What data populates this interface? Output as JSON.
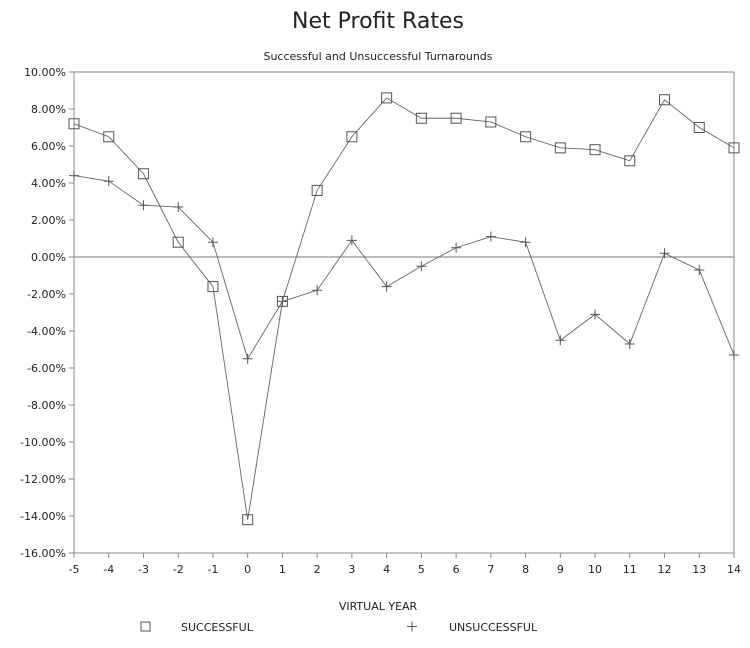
{
  "chart_data": {
    "type": "line",
    "title": "Net Profit Rates",
    "subtitle": "Successful and Unsuccessful Turnarounds",
    "xlabel": "VIRTUAL YEAR",
    "ylabel": "",
    "x": [
      -5,
      -4,
      -3,
      -2,
      -1,
      0,
      1,
      2,
      3,
      4,
      5,
      6,
      7,
      8,
      9,
      10,
      11,
      12,
      13,
      14
    ],
    "xlim": [
      -5,
      14
    ],
    "ylim": [
      -16,
      10
    ],
    "yticks": [
      10,
      8,
      6,
      4,
      2,
      0,
      -2,
      -4,
      -6,
      -8,
      -10,
      -12,
      -14,
      -16
    ],
    "ytick_labels": [
      "10.00%",
      "8.00%",
      "6.00%",
      "4.00%",
      "2.00%",
      "0.00%",
      "-2.00%",
      "-4.00%",
      "-6.00%",
      "-8.00%",
      "-10.00%",
      "-12.00%",
      "-14.00%",
      "-16.00%"
    ],
    "xtick_labels": [
      "-5",
      "-4",
      "-3",
      "-2",
      "-1",
      "0",
      "1",
      "2",
      "3",
      "4",
      "5",
      "6",
      "7",
      "8",
      "9",
      "10",
      "11",
      "12",
      "13",
      "14"
    ],
    "grid": false,
    "zero_line": true,
    "legend_position": "bottom",
    "series": [
      {
        "name": "SUCCESSFUL",
        "marker": "square",
        "color": "#555555",
        "values": [
          7.2,
          6.5,
          4.5,
          0.8,
          -1.6,
          -14.2,
          -2.4,
          3.6,
          6.5,
          8.6,
          7.5,
          7.5,
          7.3,
          6.5,
          5.9,
          5.8,
          5.2,
          8.5,
          7.0,
          5.9
        ]
      },
      {
        "name": "UNSUCCESSFUL",
        "marker": "plus",
        "color": "#555555",
        "values": [
          4.4,
          4.1,
          2.8,
          2.7,
          0.8,
          -5.5,
          -2.4,
          -1.8,
          0.9,
          -1.6,
          -0.5,
          0.5,
          1.1,
          0.8,
          -4.5,
          -3.1,
          -4.7,
          0.2,
          -0.7,
          -5.3
        ]
      }
    ]
  }
}
